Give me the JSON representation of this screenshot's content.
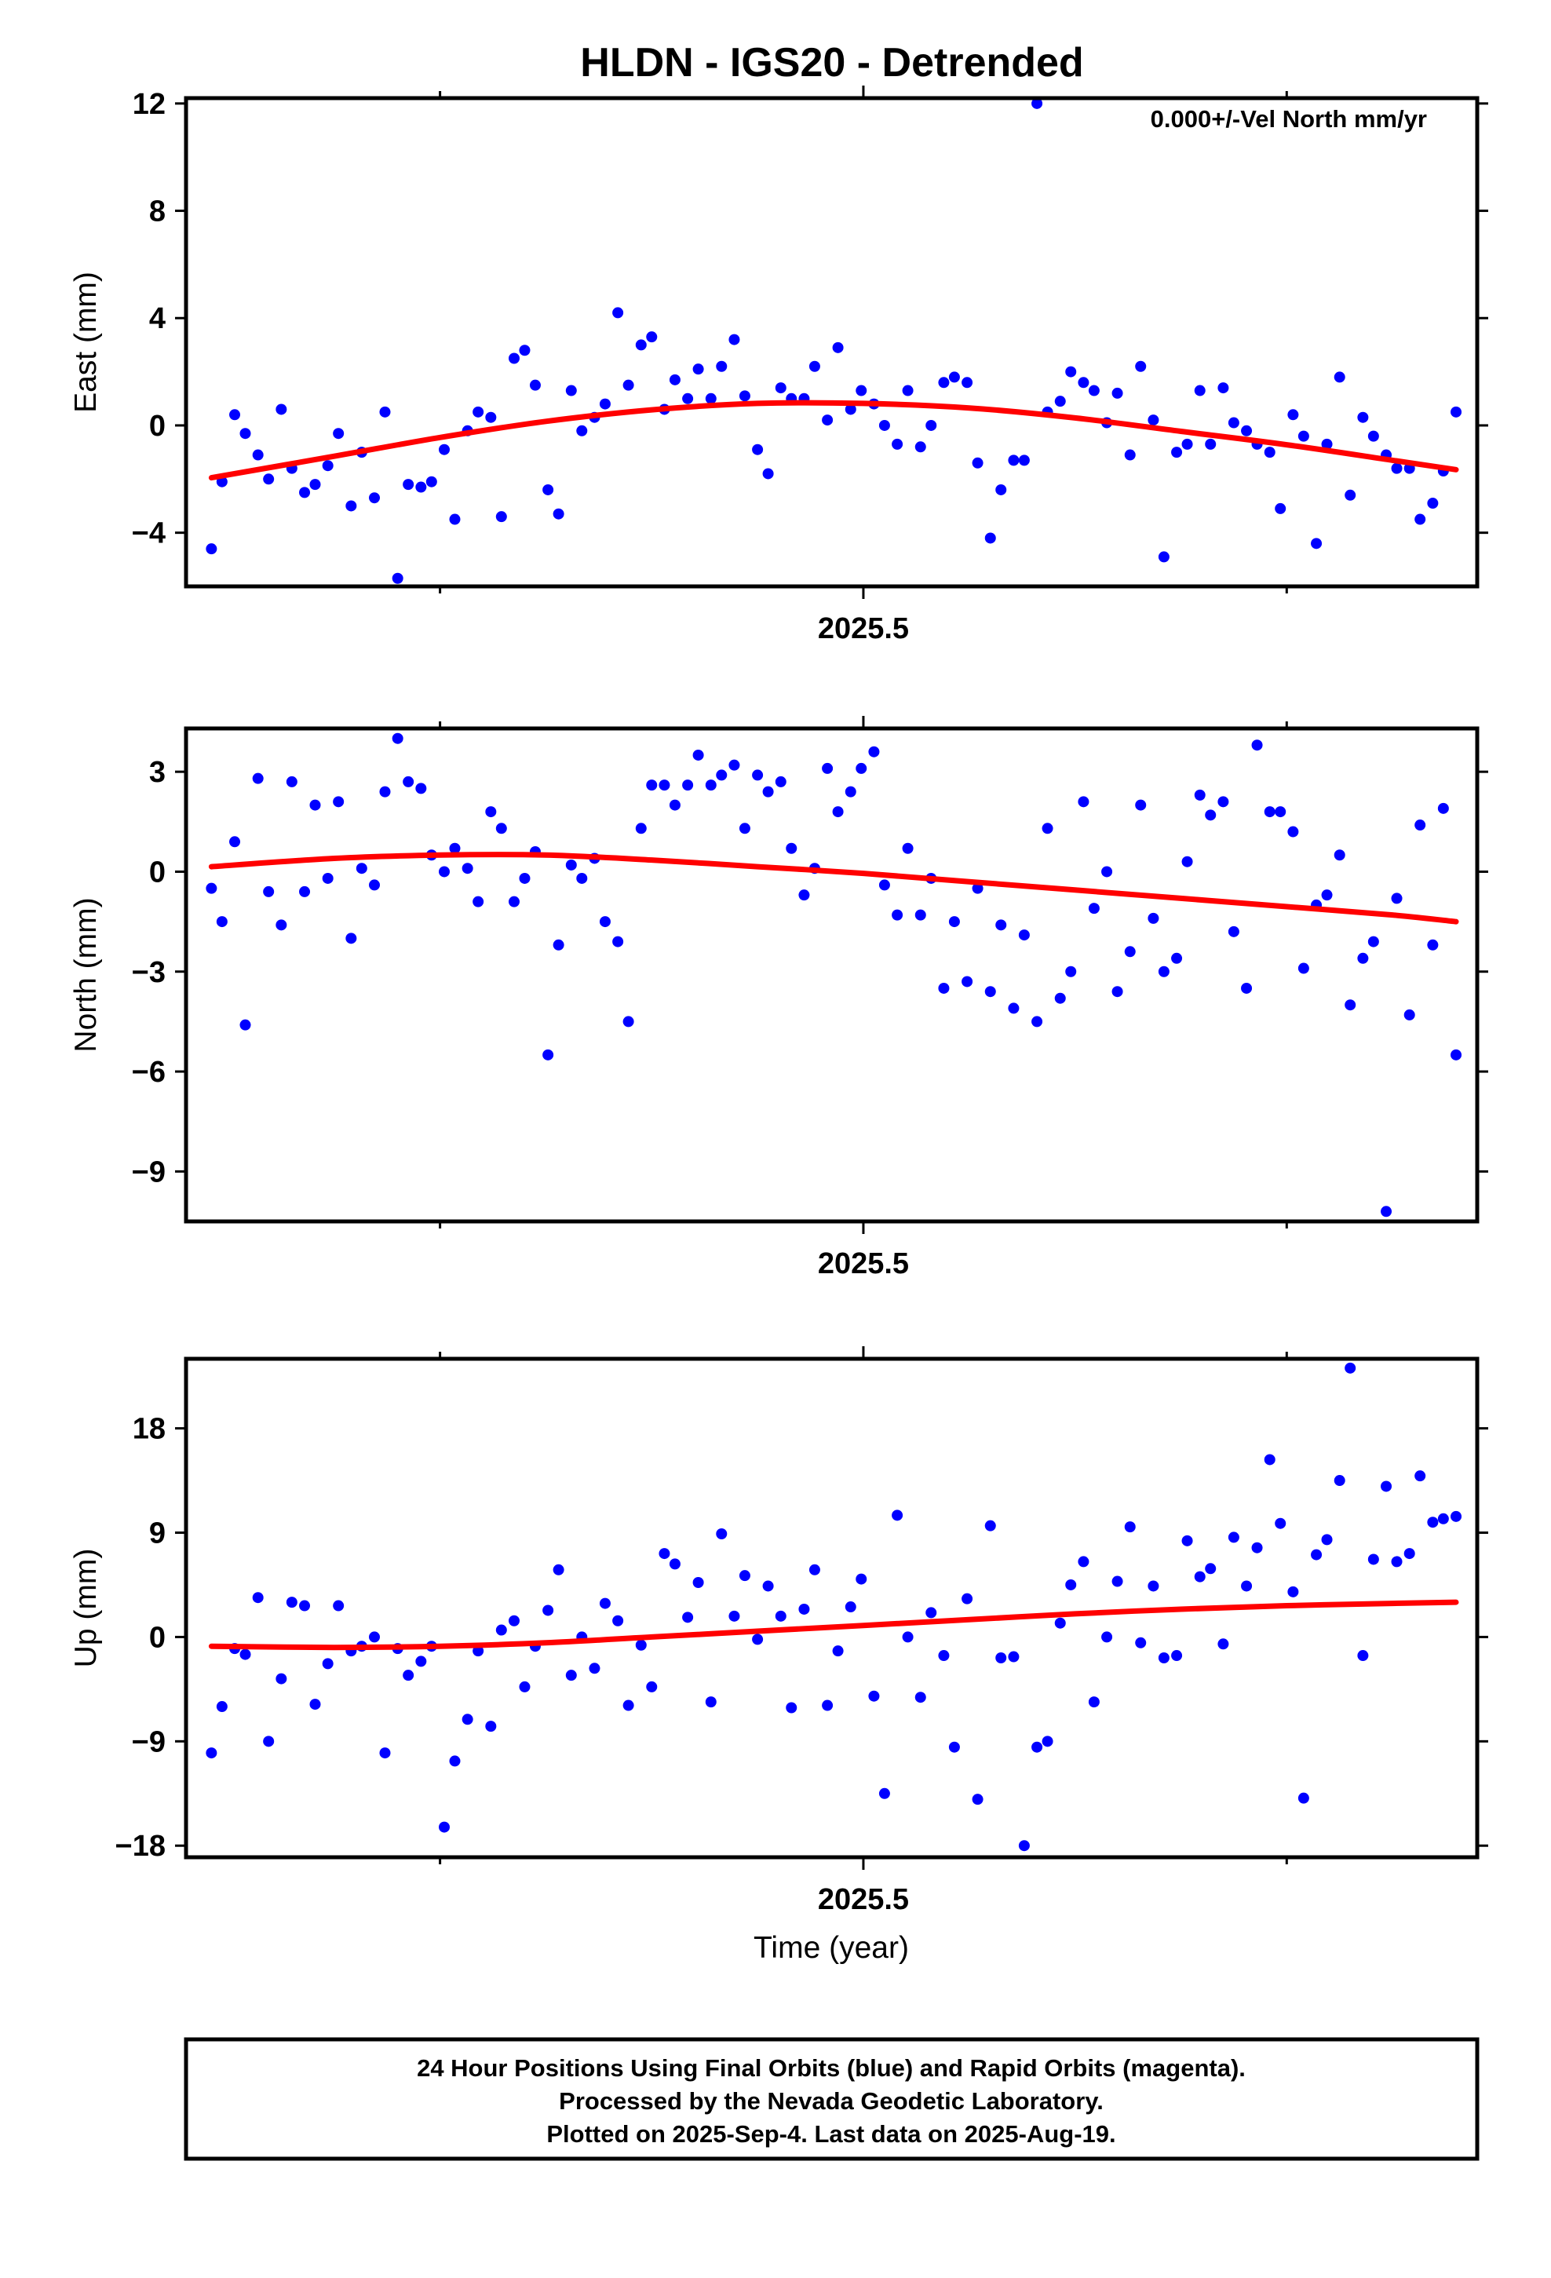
{
  "title": "HLDN - IGS20 - Detrended",
  "colors": {
    "final_points": "#0000ff",
    "fit_line": "#ff0000",
    "frame": "#000000",
    "background": "#ffffff"
  },
  "chart_data": [
    {
      "type": "scatter",
      "name": "east",
      "ylabel": "East (mm)",
      "xtick_label": "2025.5",
      "annotation": "0.000+/-Vel North mm/yr",
      "xlim": [
        2025.18,
        2025.79
      ],
      "ylim": [
        -6,
        12.2
      ],
      "yticks": [
        -4,
        0,
        4,
        8,
        12
      ],
      "xtick_major": 2025.5,
      "xtick_minor": [
        2025.3,
        2025.7
      ],
      "grid": false,
      "points_x": [
        2025.192,
        2025.197,
        2025.203,
        2025.208,
        2025.214,
        2025.219,
        2025.225,
        2025.23,
        2025.236,
        2025.241,
        2025.247,
        2025.252,
        2025.258,
        2025.263,
        2025.269,
        2025.274,
        2025.28,
        2025.285,
        2025.291,
        2025.296,
        2025.302,
        2025.307,
        2025.313,
        2025.318,
        2025.324,
        2025.329,
        2025.335,
        2025.34,
        2025.345,
        2025.351,
        2025.356,
        2025.362,
        2025.367,
        2025.373,
        2025.378,
        2025.384,
        2025.389,
        2025.395,
        2025.4,
        2025.406,
        2025.411,
        2025.417,
        2025.422,
        2025.428,
        2025.433,
        2025.439,
        2025.444,
        2025.45,
        2025.455,
        2025.461,
        2025.466,
        2025.472,
        2025.477,
        2025.483,
        2025.488,
        2025.494,
        2025.499,
        2025.505,
        2025.51,
        2025.516,
        2025.521,
        2025.527,
        2025.532,
        2025.538,
        2025.543,
        2025.549,
        2025.554,
        2025.56,
        2025.565,
        2025.571,
        2025.576,
        2025.582,
        2025.587,
        2025.593,
        2025.598,
        2025.604,
        2025.609,
        2025.615,
        2025.62,
        2025.626,
        2025.631,
        2025.637,
        2025.642,
        2025.648,
        2025.653,
        2025.659,
        2025.664,
        2025.67,
        2025.675,
        2025.681,
        2025.686,
        2025.692,
        2025.697,
        2025.703,
        2025.708,
        2025.714,
        2025.719,
        2025.725,
        2025.73,
        2025.736,
        2025.741,
        2025.747,
        2025.752,
        2025.758,
        2025.763,
        2025.769,
        2025.774,
        2025.78
      ],
      "points_y": [
        -4.6,
        -2.1,
        0.4,
        -0.3,
        -1.1,
        -2.0,
        0.6,
        -1.6,
        -2.5,
        -2.2,
        -1.5,
        -0.3,
        -3.0,
        -1.0,
        -2.7,
        0.5,
        -5.7,
        -2.2,
        -2.3,
        -2.1,
        -0.9,
        -3.5,
        -0.2,
        0.5,
        0.3,
        -3.4,
        2.5,
        2.8,
        1.5,
        -2.4,
        -3.3,
        1.3,
        -0.2,
        0.3,
        0.8,
        4.2,
        1.5,
        3.0,
        3.3,
        0.6,
        1.7,
        1.0,
        2.1,
        1.0,
        2.2,
        3.2,
        1.1,
        -0.9,
        -1.8,
        1.4,
        1.0,
        1.0,
        2.2,
        0.2,
        2.9,
        0.6,
        1.3,
        0.8,
        0.0,
        -0.7,
        1.3,
        -0.8,
        0.0,
        1.6,
        1.8,
        1.6,
        -1.4,
        -4.2,
        -2.4,
        -1.3,
        -1.3,
        12.0,
        0.5,
        0.9,
        2.0,
        1.6,
        1.3,
        0.1,
        1.2,
        -1.1,
        2.2,
        0.2,
        -4.9,
        -1.0,
        -0.7,
        1.3,
        -0.7,
        1.4,
        0.1,
        -0.2,
        -0.7,
        -1.0,
        -3.1,
        0.4,
        -0.4,
        -4.4,
        -0.7,
        1.8,
        -2.6,
        0.3,
        -0.4,
        -1.1,
        -1.6,
        -1.6,
        -3.5,
        -2.9,
        -1.7,
        0.5
      ],
      "fit_x": [
        2025.192,
        2025.25,
        2025.3,
        2025.35,
        2025.4,
        2025.45,
        2025.5,
        2025.55,
        2025.6,
        2025.65,
        2025.7,
        2025.75,
        2025.78
      ],
      "fit_y": [
        -1.95,
        -1.15,
        -0.45,
        0.15,
        0.58,
        0.82,
        0.82,
        0.65,
        0.28,
        -0.22,
        -0.72,
        -1.3,
        -1.65
      ]
    },
    {
      "type": "scatter",
      "name": "north",
      "ylabel": "North (mm)",
      "xtick_label": "2025.5",
      "annotation": "",
      "xlim": [
        2025.18,
        2025.79
      ],
      "ylim": [
        -10.5,
        4.3
      ],
      "yticks": [
        -9,
        -6,
        -3,
        0,
        3
      ],
      "xtick_major": 2025.5,
      "xtick_minor": [
        2025.3,
        2025.7
      ],
      "grid": false,
      "points_x": [
        2025.192,
        2025.197,
        2025.203,
        2025.208,
        2025.214,
        2025.219,
        2025.225,
        2025.23,
        2025.236,
        2025.241,
        2025.247,
        2025.252,
        2025.258,
        2025.263,
        2025.269,
        2025.274,
        2025.28,
        2025.285,
        2025.291,
        2025.296,
        2025.302,
        2025.307,
        2025.313,
        2025.318,
        2025.324,
        2025.329,
        2025.335,
        2025.34,
        2025.345,
        2025.351,
        2025.356,
        2025.362,
        2025.367,
        2025.373,
        2025.378,
        2025.384,
        2025.389,
        2025.395,
        2025.4,
        2025.406,
        2025.411,
        2025.417,
        2025.422,
        2025.428,
        2025.433,
        2025.439,
        2025.444,
        2025.45,
        2025.455,
        2025.461,
        2025.466,
        2025.472,
        2025.477,
        2025.483,
        2025.488,
        2025.494,
        2025.499,
        2025.505,
        2025.51,
        2025.516,
        2025.521,
        2025.527,
        2025.532,
        2025.538,
        2025.543,
        2025.549,
        2025.554,
        2025.56,
        2025.565,
        2025.571,
        2025.576,
        2025.582,
        2025.587,
        2025.593,
        2025.598,
        2025.604,
        2025.609,
        2025.615,
        2025.62,
        2025.626,
        2025.631,
        2025.637,
        2025.642,
        2025.648,
        2025.653,
        2025.659,
        2025.664,
        2025.67,
        2025.675,
        2025.681,
        2025.686,
        2025.692,
        2025.697,
        2025.703,
        2025.708,
        2025.714,
        2025.719,
        2025.725,
        2025.73,
        2025.736,
        2025.741,
        2025.747,
        2025.752,
        2025.758,
        2025.763,
        2025.769,
        2025.774,
        2025.78
      ],
      "points_y": [
        -0.5,
        -1.5,
        0.9,
        -4.6,
        2.8,
        -0.6,
        -1.6,
        2.7,
        -0.6,
        2.0,
        -0.2,
        2.1,
        -2.0,
        0.1,
        -0.4,
        2.4,
        4.0,
        2.7,
        2.5,
        0.5,
        0.0,
        0.7,
        0.1,
        -0.9,
        1.8,
        1.3,
        -0.9,
        -0.2,
        0.6,
        -5.5,
        -2.2,
        0.2,
        -0.2,
        0.4,
        -1.5,
        -2.1,
        -4.5,
        1.3,
        2.6,
        2.6,
        2.0,
        2.6,
        3.5,
        2.6,
        2.9,
        3.2,
        1.3,
        2.9,
        2.4,
        2.7,
        0.7,
        -0.7,
        0.1,
        3.1,
        1.8,
        2.4,
        3.1,
        3.6,
        -0.4,
        -1.3,
        0.7,
        -1.3,
        -0.2,
        -3.5,
        -1.5,
        -3.3,
        -0.5,
        -3.6,
        -1.6,
        -4.1,
        -1.9,
        -4.5,
        1.3,
        -3.8,
        -3.0,
        2.1,
        -1.1,
        0.0,
        -3.6,
        -2.4,
        2.0,
        -1.4,
        -3.0,
        -2.6,
        0.3,
        2.3,
        1.7,
        2.1,
        -1.8,
        -3.5,
        3.8,
        1.8,
        1.8,
        1.2,
        -2.9,
        -1.0,
        -0.7,
        0.5,
        -4.0,
        -2.6,
        -2.1,
        -10.2,
        -0.8,
        -4.3,
        1.4,
        -2.2,
        1.9,
        -5.5
      ],
      "fit_x": [
        2025.192,
        2025.25,
        2025.3,
        2025.35,
        2025.4,
        2025.45,
        2025.5,
        2025.55,
        2025.6,
        2025.65,
        2025.7,
        2025.75,
        2025.78
      ],
      "fit_y": [
        0.15,
        0.4,
        0.5,
        0.5,
        0.35,
        0.15,
        -0.05,
        -0.3,
        -0.55,
        -0.8,
        -1.05,
        -1.3,
        -1.5
      ]
    },
    {
      "type": "scatter",
      "name": "up",
      "ylabel": "Up (mm)",
      "xtick_label": "2025.5",
      "annotation": "",
      "xlabel": "Time (year)",
      "xlim": [
        2025.18,
        2025.79
      ],
      "ylim": [
        -19,
        24
      ],
      "yticks": [
        -18,
        -9,
        0,
        9,
        18
      ],
      "xtick_major": 2025.5,
      "xtick_minor": [
        2025.3,
        2025.7
      ],
      "grid": false,
      "points_x": [
        2025.192,
        2025.197,
        2025.203,
        2025.208,
        2025.214,
        2025.219,
        2025.225,
        2025.23,
        2025.236,
        2025.241,
        2025.247,
        2025.252,
        2025.258,
        2025.263,
        2025.269,
        2025.274,
        2025.28,
        2025.285,
        2025.291,
        2025.296,
        2025.302,
        2025.307,
        2025.313,
        2025.318,
        2025.324,
        2025.329,
        2025.335,
        2025.34,
        2025.345,
        2025.351,
        2025.356,
        2025.362,
        2025.367,
        2025.373,
        2025.378,
        2025.384,
        2025.389,
        2025.395,
        2025.4,
        2025.406,
        2025.411,
        2025.417,
        2025.422,
        2025.428,
        2025.433,
        2025.439,
        2025.444,
        2025.45,
        2025.455,
        2025.461,
        2025.466,
        2025.472,
        2025.477,
        2025.483,
        2025.488,
        2025.494,
        2025.499,
        2025.505,
        2025.51,
        2025.516,
        2025.521,
        2025.527,
        2025.532,
        2025.538,
        2025.543,
        2025.549,
        2025.554,
        2025.56,
        2025.565,
        2025.571,
        2025.576,
        2025.582,
        2025.587,
        2025.593,
        2025.598,
        2025.604,
        2025.609,
        2025.615,
        2025.62,
        2025.626,
        2025.631,
        2025.637,
        2025.642,
        2025.648,
        2025.653,
        2025.659,
        2025.664,
        2025.67,
        2025.675,
        2025.681,
        2025.686,
        2025.692,
        2025.697,
        2025.703,
        2025.708,
        2025.714,
        2025.719,
        2025.725,
        2025.73,
        2025.736,
        2025.741,
        2025.747,
        2025.752,
        2025.758,
        2025.763,
        2025.769,
        2025.774,
        2025.78
      ],
      "points_y": [
        -10,
        -6,
        -1,
        -1.5,
        3.4,
        -9,
        -3.6,
        3,
        2.7,
        -5.8,
        -2.3,
        2.7,
        -1.2,
        -0.8,
        0,
        -10,
        -1,
        -3.3,
        -2.1,
        -0.8,
        -16.4,
        -10.7,
        -7.1,
        -1.2,
        -7.7,
        0.6,
        1.4,
        -4.3,
        -0.8,
        2.3,
        5.8,
        -3.3,
        0,
        -2.7,
        2.9,
        1.4,
        -5.9,
        -0.7,
        -4.3,
        7.2,
        6.3,
        1.7,
        4.7,
        -5.6,
        8.9,
        1.8,
        5.3,
        -0.2,
        4.4,
        1.8,
        -6.1,
        2.4,
        5.8,
        -5.9,
        -1.2,
        2.6,
        5,
        -5.1,
        -13.5,
        10.5,
        0,
        -5.2,
        2.1,
        -1.6,
        -9.5,
        3.3,
        -14,
        9.6,
        -1.8,
        -1.7,
        -18,
        -9.5,
        -9,
        1.2,
        4.5,
        6.5,
        -5.6,
        0,
        4.8,
        9.5,
        -0.5,
        4.4,
        -1.8,
        -1.6,
        8.3,
        5.2,
        5.9,
        -0.6,
        8.6,
        4.4,
        7.7,
        15.3,
        9.8,
        3.9,
        -13.9,
        7.1,
        8.4,
        13.5,
        23.2,
        -1.6,
        6.7,
        13.0,
        6.5,
        7.2,
        13.9,
        9.9,
        10.2,
        10.4
      ],
      "fit_x": [
        2025.192,
        2025.25,
        2025.3,
        2025.35,
        2025.4,
        2025.45,
        2025.5,
        2025.55,
        2025.6,
        2025.65,
        2025.7,
        2025.75,
        2025.78
      ],
      "fit_y": [
        -0.8,
        -0.9,
        -0.8,
        -0.5,
        0.0,
        0.5,
        1.0,
        1.5,
        2.0,
        2.4,
        2.7,
        2.9,
        3.0
      ]
    }
  ],
  "footer": {
    "line1": "24 Hour Positions Using Final Orbits (blue) and Rapid Orbits (magenta).",
    "line2": "Processed by the Nevada Geodetic Laboratory.",
    "line3": "Plotted on 2025-Sep-4. Last data on 2025-Aug-19."
  }
}
